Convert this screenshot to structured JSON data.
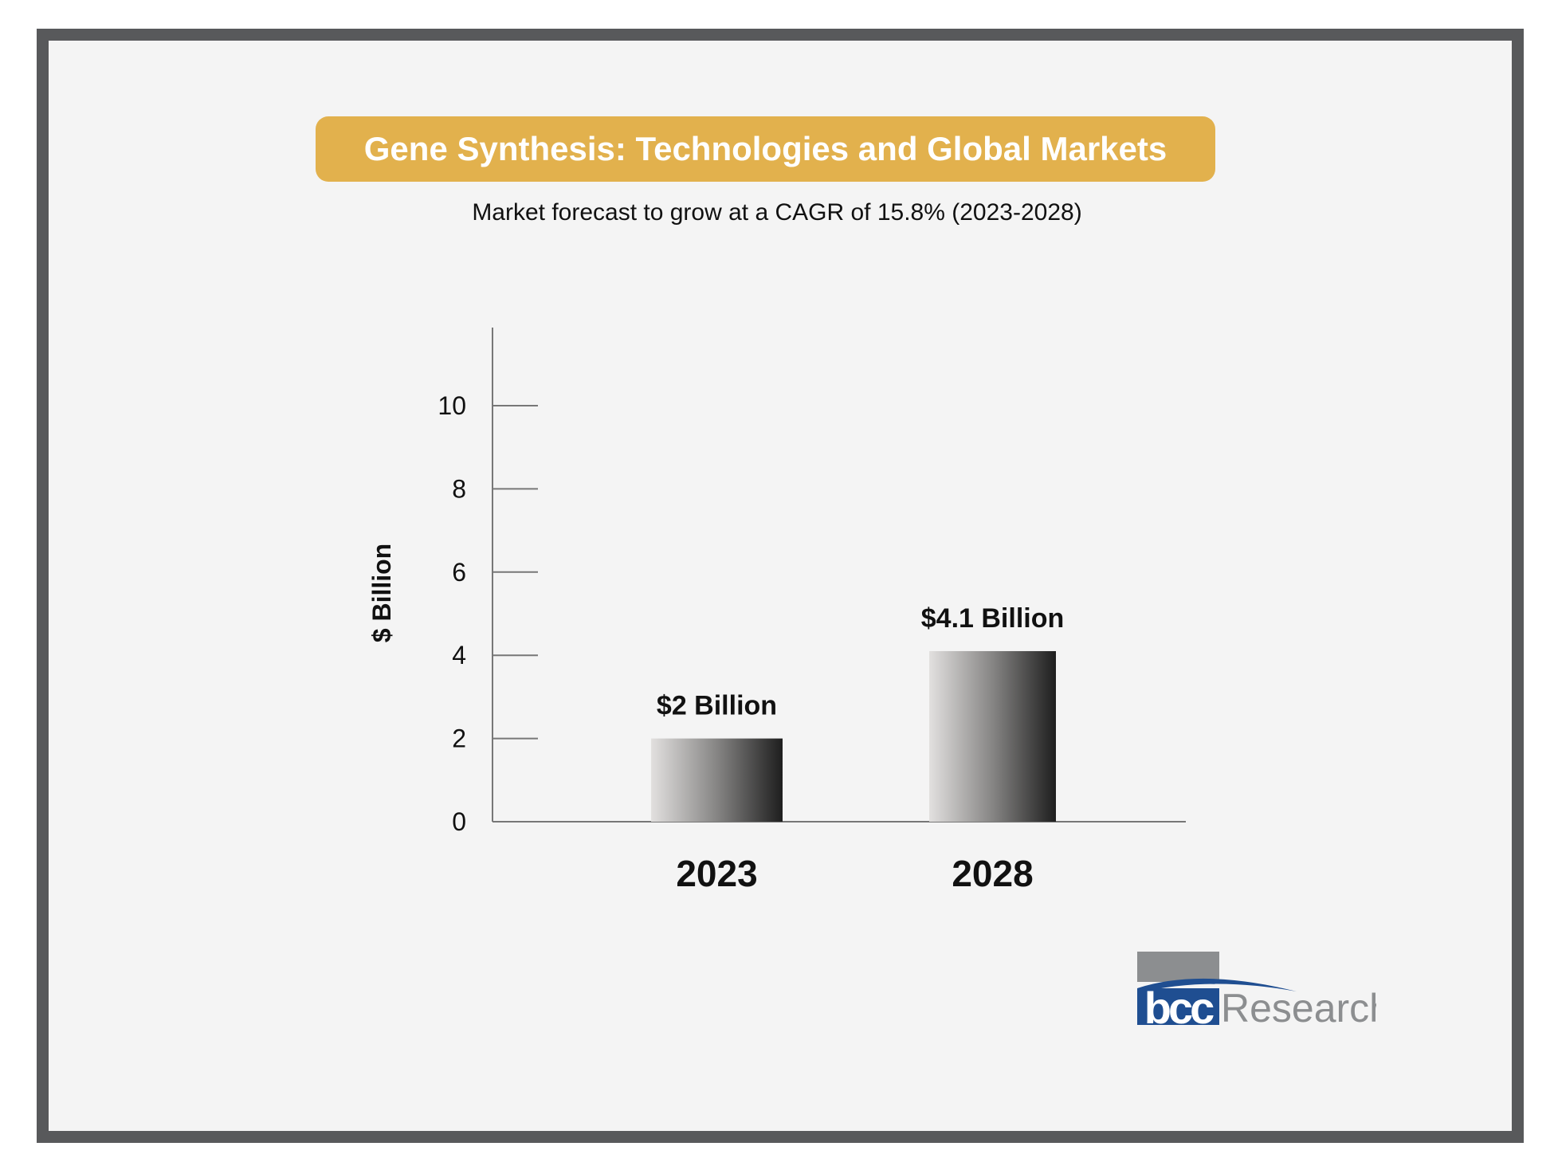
{
  "header": {
    "title": "Gene Synthesis: Technologies and Global Markets",
    "subtitle": "Market forecast to grow at a CAGR of 15.8% (2023-2028)"
  },
  "chart_data": {
    "type": "bar",
    "title": "Gene Synthesis: Technologies and Global Markets",
    "subtitle": "Market forecast to grow at a CAGR of 15.8% (2023-2028)",
    "categories": [
      "2023",
      "2028"
    ],
    "values": [
      2,
      4.1
    ],
    "data_labels": [
      "$2 Billion",
      "$4.1 Billion"
    ],
    "xlabel": "",
    "ylabel": "$ Billion",
    "ylim": [
      0,
      12
    ],
    "yticks": [
      "0",
      "2",
      "4",
      "6",
      "8",
      "10"
    ],
    "grid": false,
    "bar_fill": "horizontal gradient light gray to black"
  },
  "logo": {
    "text": "bcc Research",
    "colors": {
      "blue": "#1f4e91",
      "gray": "#8c8e90"
    }
  },
  "colors": {
    "title_bg": "#e2b14d",
    "frame": "#58595b",
    "background": "#f4f4f4"
  }
}
